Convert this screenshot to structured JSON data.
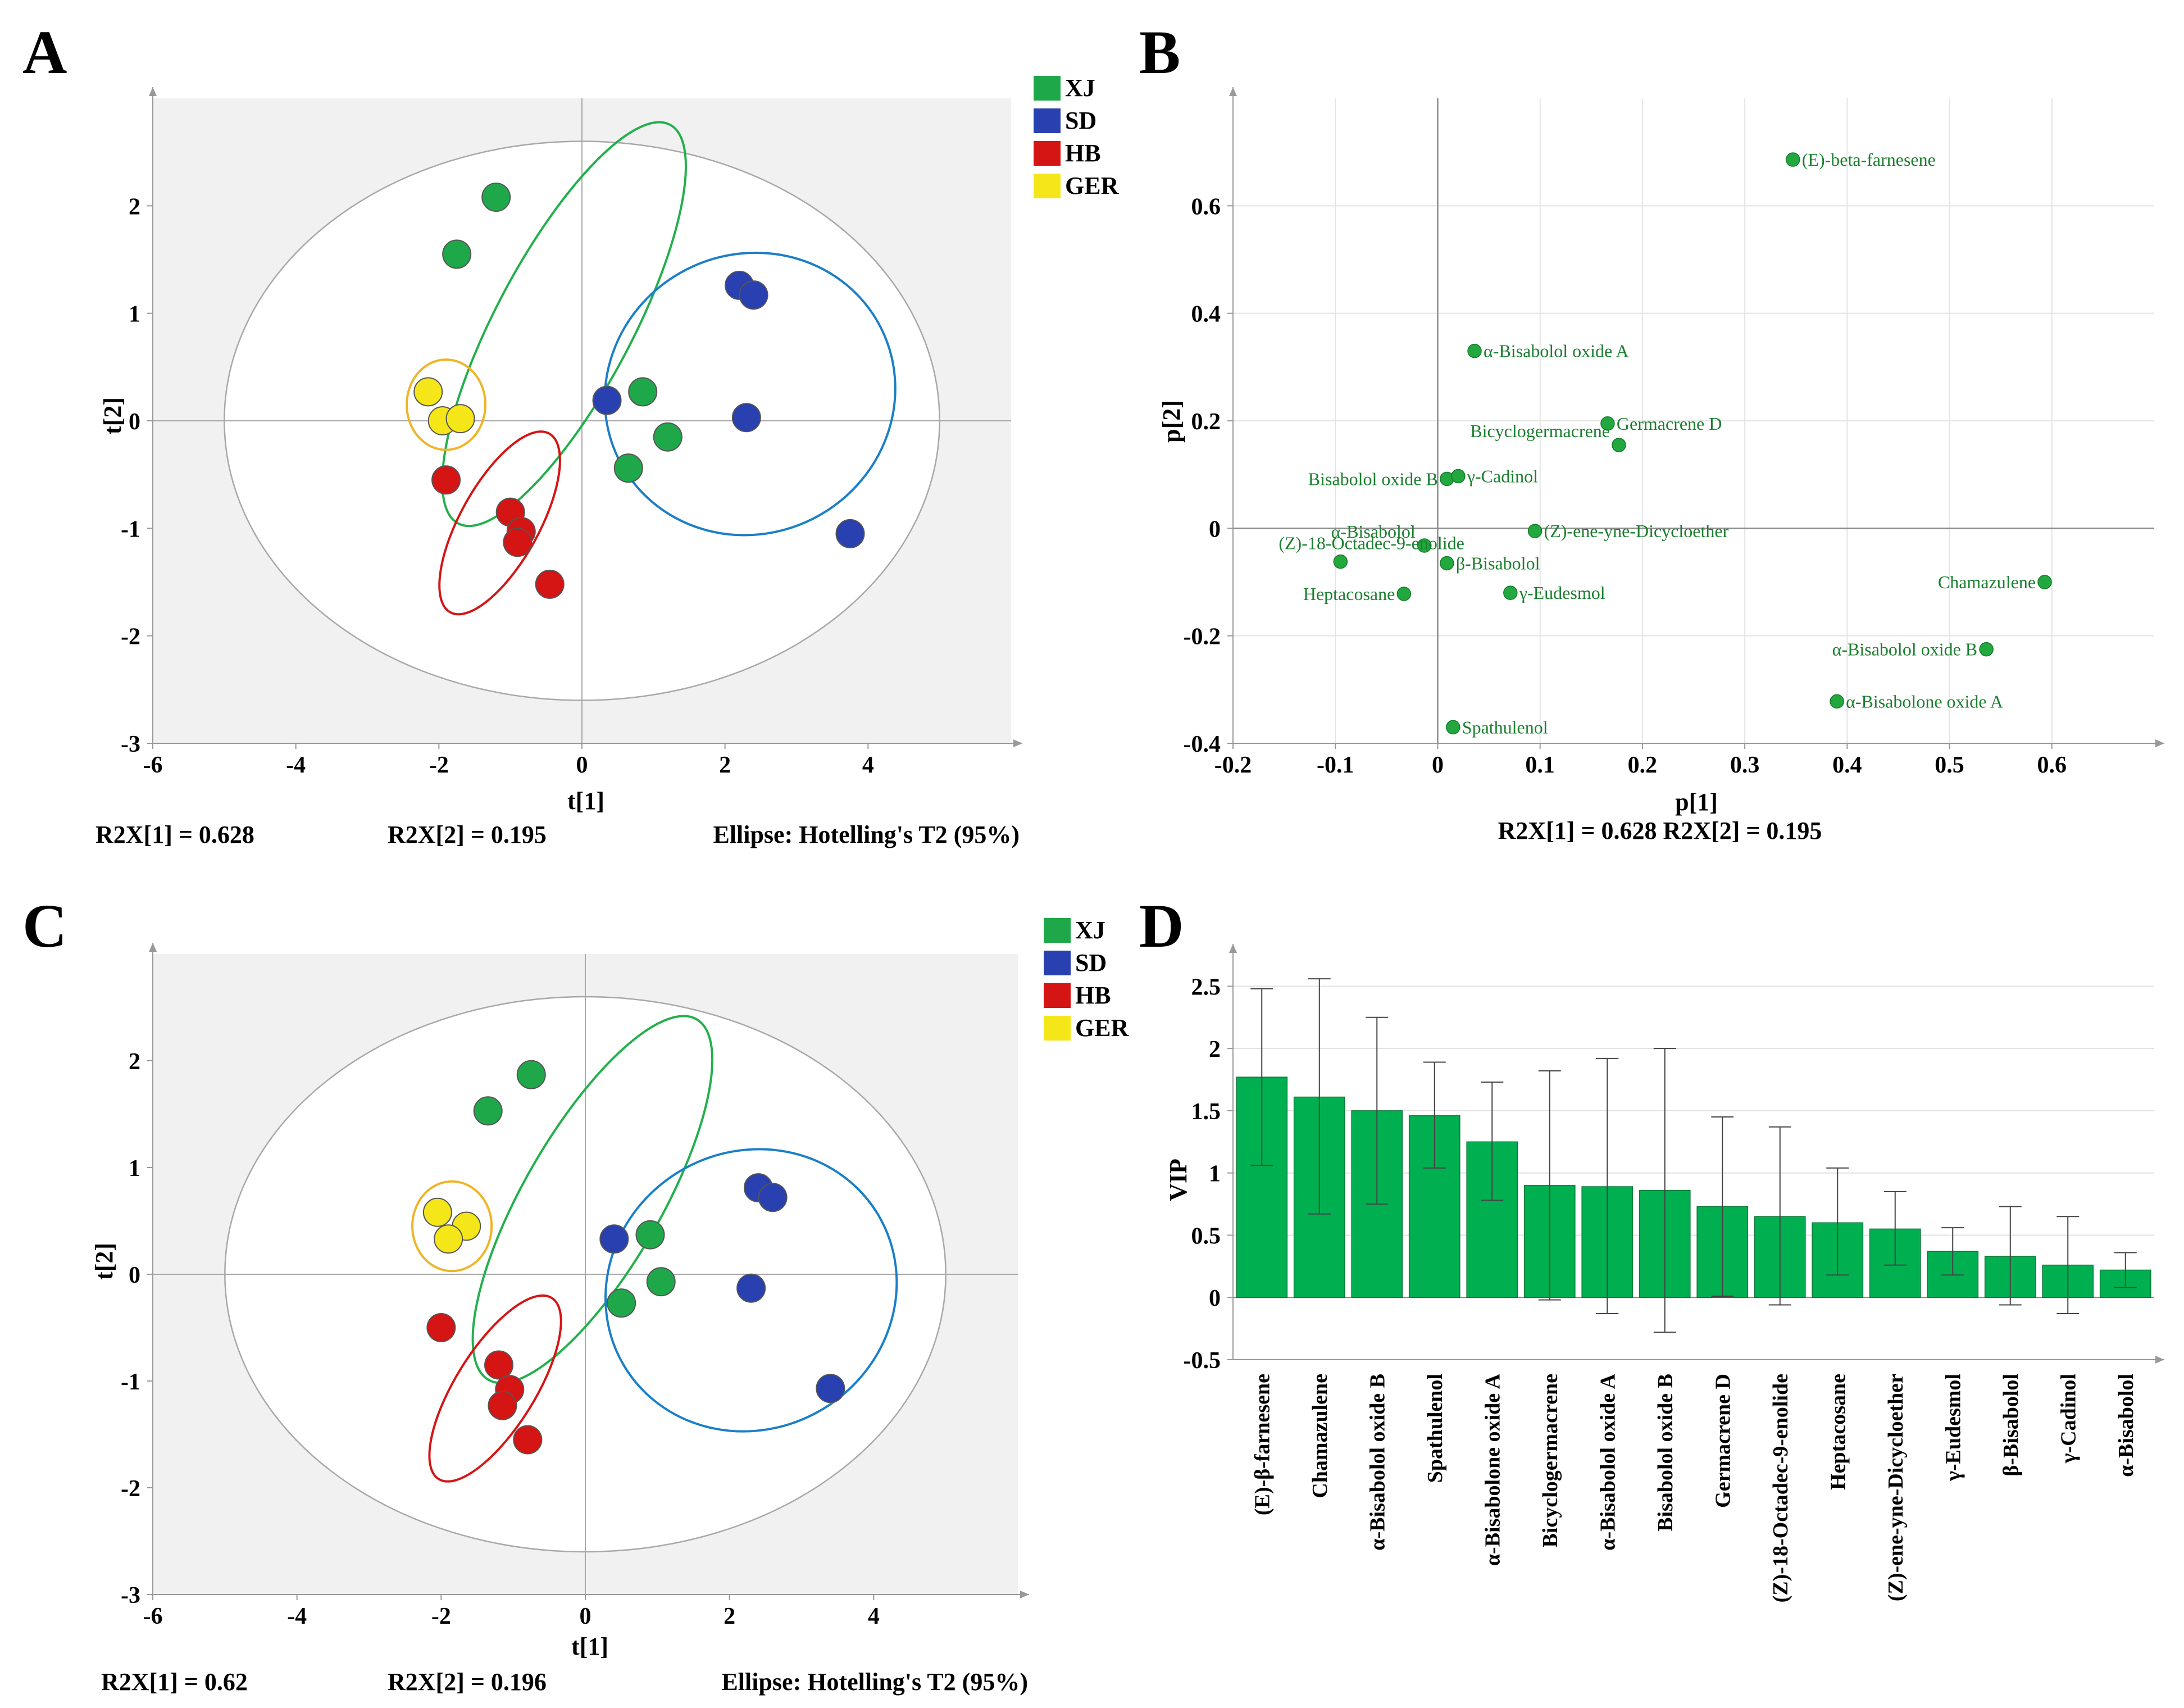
{
  "colors": {
    "XJ": "#1fa84a",
    "SD": "#2840b0",
    "HB": "#d51414",
    "GER": "#f5e61a",
    "XJ_ellipse": "#22b04b",
    "SD_ellipse": "#1a7fc8",
    "HB_ellipse": "#d51414",
    "GER_ellipse": "#f0b428",
    "loading_point": "#22a83e",
    "bar": "#00b050"
  },
  "chart_data": [
    {
      "panel": "A",
      "type": "scatter",
      "xlabel": "t[1]",
      "ylabel": "t[2]",
      "xlim": [
        -6,
        6
      ],
      "ylim": [
        -3,
        3
      ],
      "xticks": [
        -6,
        -4,
        -2,
        0,
        2,
        4
      ],
      "yticks": [
        -3,
        -2,
        -1,
        0,
        1,
        2
      ],
      "legend": [
        "XJ",
        "SD",
        "HB",
        "GER"
      ],
      "legend_position": "top-right (outside)",
      "footer": {
        "r2x1": "R2X[1] = 0.628",
        "r2x2": "R2X[2] = 0.195",
        "ellipse": "Ellipse: Hotelling's T2 (95%)"
      },
      "hotelling_ellipse": {
        "cx": 0,
        "cy": 0,
        "rx": 5,
        "ry": 2.6
      },
      "group_ellipses": [
        {
          "group": "XJ",
          "cx": -0.25,
          "cy": 0.9,
          "rx": 0.95,
          "ry": 2.1,
          "angle": 28
        },
        {
          "group": "SD",
          "cx": 2.35,
          "cy": 0.25,
          "rx": 2.05,
          "ry": 1.3,
          "angle": -27
        },
        {
          "group": "HB",
          "cx": -1.15,
          "cy": -0.95,
          "rx": 0.55,
          "ry": 0.95,
          "angle": 29
        },
        {
          "group": "GER",
          "cx": -1.9,
          "cy": 0.15,
          "rx": 0.55,
          "ry": 0.42,
          "angle": 0
        }
      ],
      "series": [
        {
          "name": "XJ",
          "points": [
            [
              -1.2,
              2.08
            ],
            [
              -1.75,
              1.55
            ],
            [
              0.85,
              0.27
            ],
            [
              1.2,
              -0.15
            ],
            [
              0.65,
              -0.44
            ]
          ]
        },
        {
          "name": "SD",
          "points": [
            [
              2.2,
              1.26
            ],
            [
              2.4,
              1.17
            ],
            [
              0.35,
              0.19
            ],
            [
              2.3,
              0.03
            ],
            [
              3.75,
              -1.05
            ]
          ]
        },
        {
          "name": "HB",
          "points": [
            [
              -1.9,
              -0.55
            ],
            [
              -1.0,
              -0.85
            ],
            [
              -0.85,
              -1.03
            ],
            [
              -0.9,
              -1.13
            ],
            [
              -0.45,
              -1.52
            ]
          ]
        },
        {
          "name": "GER",
          "points": [
            [
              -2.15,
              0.27
            ],
            [
              -1.95,
              0.0
            ],
            [
              -1.7,
              0.02
            ]
          ]
        }
      ]
    },
    {
      "panel": "B",
      "type": "scatter",
      "xlabel": "p[1]",
      "ylabel": "p[2]",
      "xlim": [
        -0.2,
        0.7
      ],
      "ylim": [
        -0.4,
        0.8
      ],
      "xticks": [
        -0.2,
        -0.1,
        0,
        0.1,
        0.2,
        0.3,
        0.4,
        0.5,
        0.6
      ],
      "xtick_labels": [
        "-0.2",
        "-0.1",
        "0",
        "0.1",
        "0.2",
        "0.3",
        "0.4",
        "0.5",
        "0.6"
      ],
      "yticks": [
        -0.4,
        -0.2,
        0,
        0.2,
        0.4,
        0.6
      ],
      "ytick_labels": [
        "-0.4",
        "-0.2",
        "0",
        "0.2",
        "0.4",
        "0.6"
      ],
      "footer": "R2X[1] = 0.628 R2X[2] = 0.195",
      "points": [
        {
          "label": "(E)-beta-farnesene",
          "x": 0.347,
          "y": 0.686,
          "anchor": "right"
        },
        {
          "label": "α-Bisabolol oxide A",
          "x": 0.036,
          "y": 0.33,
          "anchor": "right"
        },
        {
          "label": "Germacrene D",
          "x": 0.166,
          "y": 0.195,
          "anchor": "right"
        },
        {
          "label": "Bicyclogermacrene",
          "x": 0.177,
          "y": 0.155,
          "anchor": "left-above"
        },
        {
          "label": "Bisabolol oxide B",
          "x": 0.009,
          "y": 0.092,
          "anchor": "left"
        },
        {
          "label": "γ-Cadinol",
          "x": 0.02,
          "y": 0.097,
          "anchor": "right"
        },
        {
          "label": "α-Bisabolol",
          "x": -0.013,
          "y": -0.032,
          "anchor": "left-above"
        },
        {
          "label": "(Z)-18-Octadec-9-enolide",
          "x": -0.095,
          "y": -0.062,
          "anchor": "right-above"
        },
        {
          "label": "(Z)-ene-yne-Dicycloether",
          "x": 0.095,
          "y": -0.005,
          "anchor": "right"
        },
        {
          "label": "β-Bisabolol",
          "x": 0.009,
          "y": -0.065,
          "anchor": "right"
        },
        {
          "label": "Heptacosane",
          "x": -0.033,
          "y": -0.122,
          "anchor": "left"
        },
        {
          "label": "γ-Eudesmol",
          "x": 0.071,
          "y": -0.12,
          "anchor": "right"
        },
        {
          "label": "Chamazulene",
          "x": 0.593,
          "y": -0.1,
          "anchor": "left"
        },
        {
          "label": "α-Bisabolol oxide B",
          "x": 0.536,
          "y": -0.225,
          "anchor": "left"
        },
        {
          "label": "α-Bisabolone oxide A",
          "x": 0.39,
          "y": -0.322,
          "anchor": "right"
        },
        {
          "label": "Spathulenol",
          "x": 0.015,
          "y": -0.37,
          "anchor": "right"
        }
      ]
    },
    {
      "panel": "C",
      "type": "scatter",
      "xlabel": "t[1]",
      "ylabel": "t[2]",
      "xlim": [
        -6,
        6
      ],
      "ylim": [
        -3,
        3
      ],
      "xticks": [
        -6,
        -4,
        -2,
        0,
        2,
        4
      ],
      "yticks": [
        -3,
        -2,
        -1,
        0,
        1,
        2
      ],
      "legend": [
        "XJ",
        "SD",
        "HB",
        "GER"
      ],
      "legend_position": "top-right (outside)",
      "footer": {
        "r2x1": "R2X[1] = 0.62",
        "r2x2": "R2X[2] = 0.196",
        "ellipse": "Ellipse: Hotelling's T2 (95%)"
      },
      "hotelling_ellipse": {
        "cx": 0,
        "cy": 0,
        "rx": 5,
        "ry": 2.6
      },
      "group_ellipses": [
        {
          "group": "XJ",
          "cx": 0.1,
          "cy": 0.7,
          "rx": 0.95,
          "ry": 1.95,
          "angle": 30
        },
        {
          "group": "SD",
          "cx": 2.3,
          "cy": -0.15,
          "rx": 2.05,
          "ry": 1.3,
          "angle": -30
        },
        {
          "group": "HB",
          "cx": -1.25,
          "cy": -1.07,
          "rx": 0.55,
          "ry": 1.0,
          "angle": 32
        },
        {
          "group": "GER",
          "cx": -1.85,
          "cy": 0.45,
          "rx": 0.55,
          "ry": 0.42,
          "angle": 0
        }
      ],
      "series": [
        {
          "name": "XJ",
          "points": [
            [
              -0.75,
              1.87
            ],
            [
              -1.35,
              1.53
            ],
            [
              0.9,
              0.37
            ],
            [
              1.05,
              -0.07
            ],
            [
              0.5,
              -0.27
            ]
          ]
        },
        {
          "name": "SD",
          "points": [
            [
              2.4,
              0.81
            ],
            [
              2.6,
              0.72
            ],
            [
              0.4,
              0.33
            ],
            [
              2.3,
              -0.13
            ],
            [
              3.4,
              -1.07
            ]
          ]
        },
        {
          "name": "HB",
          "points": [
            [
              -2.0,
              -0.5
            ],
            [
              -1.2,
              -0.85
            ],
            [
              -1.05,
              -1.08
            ],
            [
              -1.15,
              -1.23
            ],
            [
              -0.8,
              -1.55
            ]
          ]
        },
        {
          "name": "GER",
          "points": [
            [
              -2.05,
              0.58
            ],
            [
              -1.65,
              0.45
            ],
            [
              -1.9,
              0.33
            ]
          ]
        }
      ]
    },
    {
      "panel": "D",
      "type": "bar",
      "ylabel": "VIP",
      "ylim": [
        -0.5,
        2.75
      ],
      "yticks": [
        -0.5,
        0,
        0.5,
        1,
        1.5,
        2,
        2.5
      ],
      "ytick_labels": [
        "-0.5",
        "0",
        "0.5",
        "1",
        "1.5",
        "2",
        "2.5"
      ],
      "categories": [
        "(E)-β-farnesene",
        "Chamazulene",
        "α-Bisabolol oxide B",
        "Spathulenol",
        "α-Bisabolone oxide A",
        "Bicyclogermacrene",
        "α-Bisabolol oxide A",
        "Bisabolol oxide B",
        "Germacrene D",
        "(Z)-18-Octadec-9-enolide",
        "Heptacosane",
        "(Z)-ene-yne-Dicycloether",
        "γ-Eudesmol",
        "β-Bisabolol",
        "γ-Cadinol",
        "α-Bisabolol"
      ],
      "values": [
        1.77,
        1.61,
        1.5,
        1.46,
        1.25,
        0.9,
        0.89,
        0.86,
        0.73,
        0.65,
        0.6,
        0.55,
        0.37,
        0.33,
        0.26,
        0.22
      ],
      "error_low": [
        1.06,
        0.67,
        0.75,
        1.04,
        0.78,
        -0.02,
        -0.13,
        -0.28,
        0.01,
        -0.06,
        0.18,
        0.26,
        0.18,
        -0.06,
        -0.13,
        0.08
      ],
      "error_high": [
        2.48,
        2.56,
        2.25,
        1.89,
        1.73,
        1.82,
        1.92,
        2.0,
        1.45,
        1.37,
        1.04,
        0.85,
        0.56,
        0.73,
        0.65,
        0.36
      ]
    }
  ]
}
